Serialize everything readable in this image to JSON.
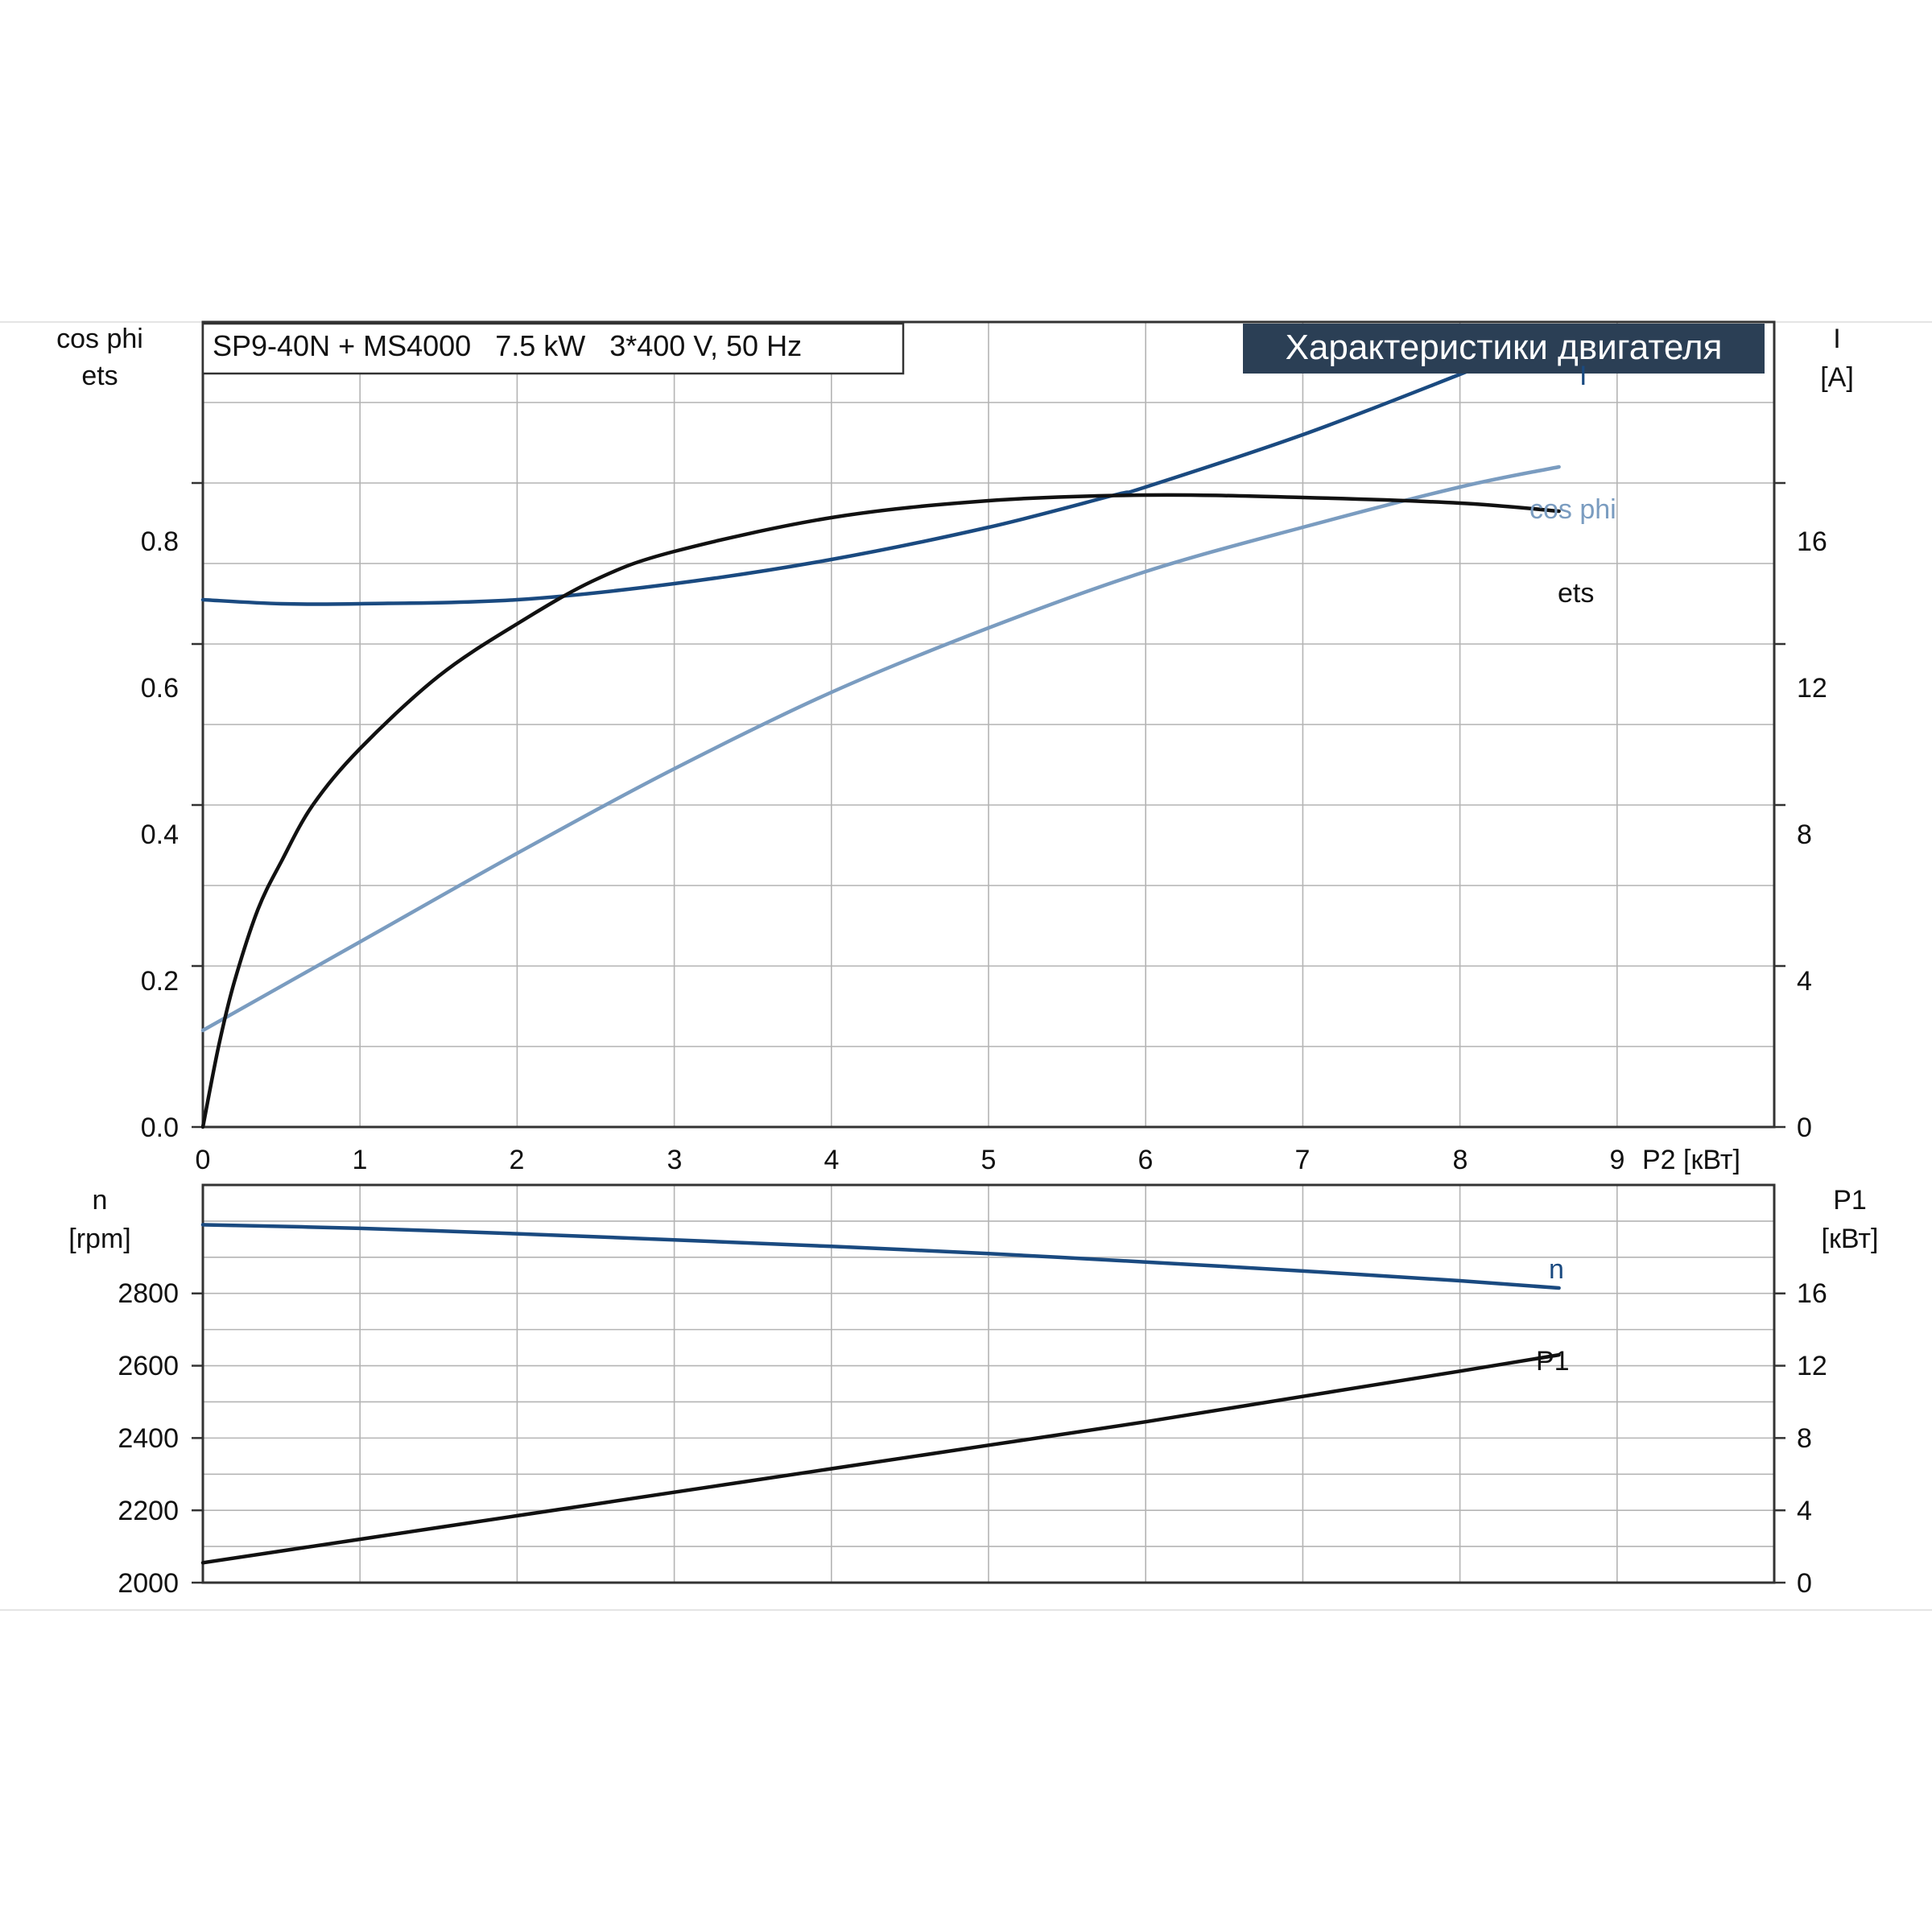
{
  "chart_data": [
    {
      "type": "line",
      "title": "Характеристики двигателя",
      "subtitle": "SP9-40N + MS4000   7.5 kW   3*400 V, 50 Hz",
      "xlabel": "P2 [кВт]",
      "x_ticks": [
        "0",
        "1",
        "2",
        "3",
        "4",
        "5",
        "6",
        "7",
        "8",
        "9"
      ],
      "xlim": [
        0,
        10
      ],
      "y_left_label_lines": [
        "cos phi",
        "ets"
      ],
      "y_left_ticks": [
        "0.0",
        "0.2",
        "0.4",
        "0.6",
        "0.8"
      ],
      "y_left_lim": [
        0,
        1.0
      ],
      "y_right_label_lines": [
        "I",
        "[A]"
      ],
      "y_right_ticks": [
        "0",
        "4",
        "8",
        "12",
        "16"
      ],
      "y_right_lim": [
        0,
        20
      ],
      "grid": true,
      "series": [
        {
          "name": "I",
          "axis": "right",
          "color": "#1a4a80",
          "x": [
            0,
            0.5,
            1,
            2,
            3,
            4,
            5,
            5.8,
            6,
            7,
            8,
            8.63
          ],
          "y": [
            13.1,
            13.0,
            13.0,
            13.1,
            13.5,
            14.1,
            14.9,
            15.7,
            15.9,
            17.2,
            18.7,
            19.7
          ]
        },
        {
          "name": "cos phi",
          "axis": "left",
          "color": "#7a9cc0",
          "x": [
            0,
            1,
            2,
            3,
            4,
            5,
            6,
            7,
            8,
            8.63
          ],
          "y": [
            0.12,
            0.23,
            0.34,
            0.445,
            0.54,
            0.62,
            0.69,
            0.745,
            0.795,
            0.82
          ]
        },
        {
          "name": "ets",
          "axis": "left",
          "color": "#111111",
          "x": [
            0,
            0.1,
            0.2,
            0.35,
            0.5,
            0.7,
            1,
            1.5,
            2,
            2.5,
            3,
            4,
            5,
            6,
            7,
            8,
            8.63
          ],
          "y": [
            0,
            0.1,
            0.18,
            0.27,
            0.33,
            0.4,
            0.47,
            0.56,
            0.625,
            0.68,
            0.715,
            0.757,
            0.778,
            0.785,
            0.782,
            0.775,
            0.765
          ]
        }
      ]
    },
    {
      "type": "line",
      "xlabel": "",
      "xlim": [
        0,
        10
      ],
      "y_left_label_lines": [
        "n",
        "[rpm]"
      ],
      "y_left_ticks": [
        "2000",
        "2200",
        "2400",
        "2600",
        "2800"
      ],
      "y_left_lim": [
        2000,
        3100
      ],
      "y_right_label_lines": [
        "P1",
        "[кВт]"
      ],
      "y_right_ticks": [
        "0",
        "4",
        "8",
        "12",
        "16"
      ],
      "y_right_lim": [
        0,
        22
      ],
      "grid": true,
      "series": [
        {
          "name": "n",
          "axis": "left",
          "color": "#1a4a80",
          "x": [
            0,
            1,
            2,
            3,
            4,
            5,
            6,
            7,
            8,
            8.63
          ],
          "y": [
            2990,
            2980,
            2965,
            2948,
            2930,
            2910,
            2887,
            2862,
            2835,
            2815
          ]
        },
        {
          "name": "P1",
          "axis": "right",
          "color": "#111111",
          "x": [
            0,
            1,
            2,
            3,
            4,
            5,
            6,
            7,
            8,
            8.63
          ],
          "y": [
            1.1,
            2.4,
            3.7,
            5.0,
            6.3,
            7.6,
            8.9,
            10.3,
            11.7,
            12.6
          ]
        }
      ]
    }
  ]
}
